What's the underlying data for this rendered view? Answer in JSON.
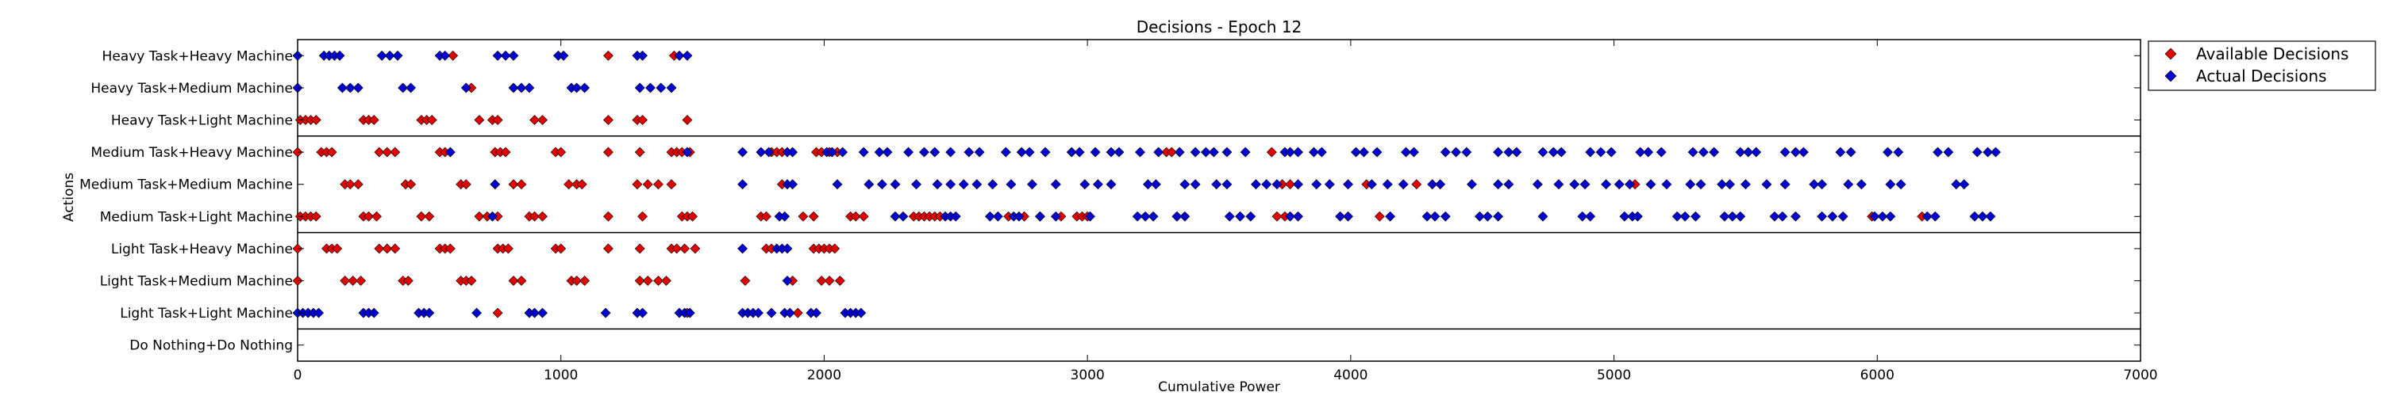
{
  "chart_data": {
    "type": "scatter",
    "title": "Decisions - Epoch 12",
    "xlabel": "Cumulative Power",
    "ylabel": "Actions",
    "xlim": [
      0,
      7000
    ],
    "xticks": [
      0,
      1000,
      2000,
      3000,
      4000,
      5000,
      6000,
      7000
    ],
    "categories": [
      "Heavy Task+Heavy Machine",
      "Heavy Task+Medium Machine",
      "Heavy Task+Light Machine",
      "Medium Task+Heavy Machine",
      "Medium Task+Medium Machine",
      "Medium Task+Light Machine",
      "Light Task+Heavy Machine",
      "Light Task+Medium Machine",
      "Light Task+Light Machine",
      "Do Nothing+Do Nothing"
    ],
    "group_separators_after": [
      2,
      5,
      8
    ],
    "grid": false,
    "legend_position": "outside-upper-right",
    "series": [
      {
        "name": "Available Decisions",
        "color": "#e00000",
        "marker": "diamond",
        "points": [
          [
            0,
            [
              590,
              1180,
              1430
            ]
          ],
          [
            1,
            [
              660
            ]
          ],
          [
            2,
            [
              10,
              30,
              50,
              70,
              250,
              270,
              290,
              470,
              490,
              510,
              690,
              740,
              760,
              900,
              930,
              1180,
              1290,
              1310,
              1480
            ]
          ],
          [
            3,
            [
              0,
              90,
              110,
              130,
              310,
              340,
              370,
              540,
              560,
              750,
              770,
              790,
              980,
              1000,
              1180,
              1300,
              1420,
              1440,
              1460,
              1490,
              1800,
              1820,
              1840,
              1970,
              1990,
              2020,
              2050,
              3300,
              3320,
              3700
            ]
          ],
          [
            4,
            [
              180,
              200,
              230,
              410,
              430,
              620,
              640,
              820,
              850,
              1030,
              1060,
              1080,
              1290,
              1330,
              1370,
              1420,
              1840,
              3740,
              3770,
              4060,
              4250,
              5080
            ]
          ],
          [
            5,
            [
              10,
              30,
              50,
              70,
              250,
              270,
              300,
              470,
              500,
              690,
              720,
              760,
              880,
              900,
              930,
              1180,
              1310,
              1460,
              1480,
              1500,
              1760,
              1780,
              1920,
              1960,
              2100,
              2120,
              2150,
              2340,
              2360,
              2380,
              2400,
              2420,
              2440,
              2700,
              2760,
              2820,
              2900,
              2960,
              2980,
              3000,
              3340,
              3720,
              3750,
              4110,
              5980,
              6170
            ]
          ],
          [
            6,
            [
              0,
              110,
              130,
              150,
              310,
              340,
              370,
              540,
              560,
              580,
              760,
              780,
              800,
              980,
              1000,
              1180,
              1300,
              1420,
              1440,
              1470,
              1510,
              1780,
              1800,
              1960,
              1980,
              2000,
              2020,
              2040
            ]
          ],
          [
            7,
            [
              0,
              180,
              210,
              240,
              400,
              420,
              620,
              640,
              660,
              820,
              850,
              1040,
              1060,
              1090,
              1300,
              1330,
              1370,
              1400,
              1700,
              1880,
              1990,
              2020,
              2060
            ]
          ],
          [
            8,
            [
              760,
              1480,
              1900
            ]
          ]
        ]
      },
      {
        "name": "Actual Decisions",
        "color": "#0000d0",
        "marker": "diamond",
        "points": [
          [
            0,
            [
              0,
              100,
              120,
              140,
              160,
              320,
              350,
              380,
              540,
              560,
              760,
              790,
              820,
              990,
              1010,
              1290,
              1310,
              1450,
              1480
            ]
          ],
          [
            1,
            [
              0,
              170,
              200,
              230,
              400,
              430,
              640,
              820,
              850,
              880,
              1040,
              1060,
              1090,
              1300,
              1340,
              1380,
              1420
            ]
          ],
          [
            2,
            []
          ],
          [
            3,
            [
              580,
              1480,
              1690,
              1760,
              1790,
              1860,
              1880,
              2010,
              2030,
              2070,
              2150,
              2210,
              2240,
              2320,
              2380,
              2420,
              2480,
              2550,
              2590,
              2690,
              2750,
              2780,
              2840,
              2940,
              2970,
              3030,
              3090,
              3120,
              3200,
              3270,
              3350,
              3410,
              3450,
              3480,
              3530,
              3600,
              3750,
              3770,
              3800,
              3860,
              3890,
              4020,
              4050,
              4100,
              4210,
              4240,
              4360,
              4400,
              4440,
              4560,
              4600,
              4630,
              4730,
              4770,
              4800,
              4910,
              4950,
              4990,
              5100,
              5130,
              5180,
              5300,
              5340,
              5380,
              5480,
              5510,
              5540,
              5650,
              5690,
              5720,
              5860,
              5900,
              6040,
              6080,
              6230,
              6270,
              6380,
              6420,
              6450
            ]
          ],
          [
            4,
            [
              750,
              1690,
              1860,
              1880,
              2050,
              2170,
              2220,
              2270,
              2350,
              2430,
              2480,
              2530,
              2580,
              2640,
              2710,
              2790,
              2880,
              2990,
              3040,
              3090,
              3230,
              3260,
              3370,
              3410,
              3490,
              3530,
              3640,
              3680,
              3720,
              3800,
              3870,
              3920,
              3990,
              4080,
              4140,
              4200,
              4310,
              4340,
              4460,
              4560,
              4600,
              4710,
              4790,
              4850,
              4890,
              4970,
              5020,
              5060,
              5140,
              5200,
              5290,
              5330,
              5410,
              5440,
              5500,
              5580,
              5650,
              5760,
              5790,
              5890,
              5940,
              6050,
              6090,
              6300,
              6330
            ]
          ],
          [
            5,
            [
              740,
              1830,
              1850,
              2270,
              2300,
              2460,
              2480,
              2500,
              2630,
              2660,
              2720,
              2740,
              2820,
              2880,
              3010,
              3190,
              3220,
              3250,
              3340,
              3370,
              3540,
              3580,
              3620,
              3770,
              3800,
              3960,
              3990,
              4150,
              4290,
              4320,
              4360,
              4490,
              4520,
              4560,
              4730,
              4880,
              4910,
              5040,
              5070,
              5090,
              5240,
              5270,
              5310,
              5420,
              5450,
              5480,
              5610,
              5640,
              5690,
              5790,
              5830,
              5870,
              5990,
              6020,
              6050,
              6190,
              6220,
              6370,
              6400,
              6430
            ]
          ],
          [
            6,
            [
              1690,
              1820,
              1840,
              1860
            ]
          ],
          [
            7,
            [
              1860
            ]
          ],
          [
            8,
            [
              0,
              20,
              40,
              60,
              80,
              250,
              270,
              290,
              460,
              480,
              500,
              680,
              880,
              900,
              930,
              1170,
              1290,
              1310,
              1450,
              1470,
              1490,
              1690,
              1710,
              1730,
              1750,
              1800,
              1850,
              1870,
              1950,
              1970,
              2080,
              2100,
              2120,
              2140
            ]
          ],
          [
            9,
            []
          ]
        ]
      }
    ]
  }
}
